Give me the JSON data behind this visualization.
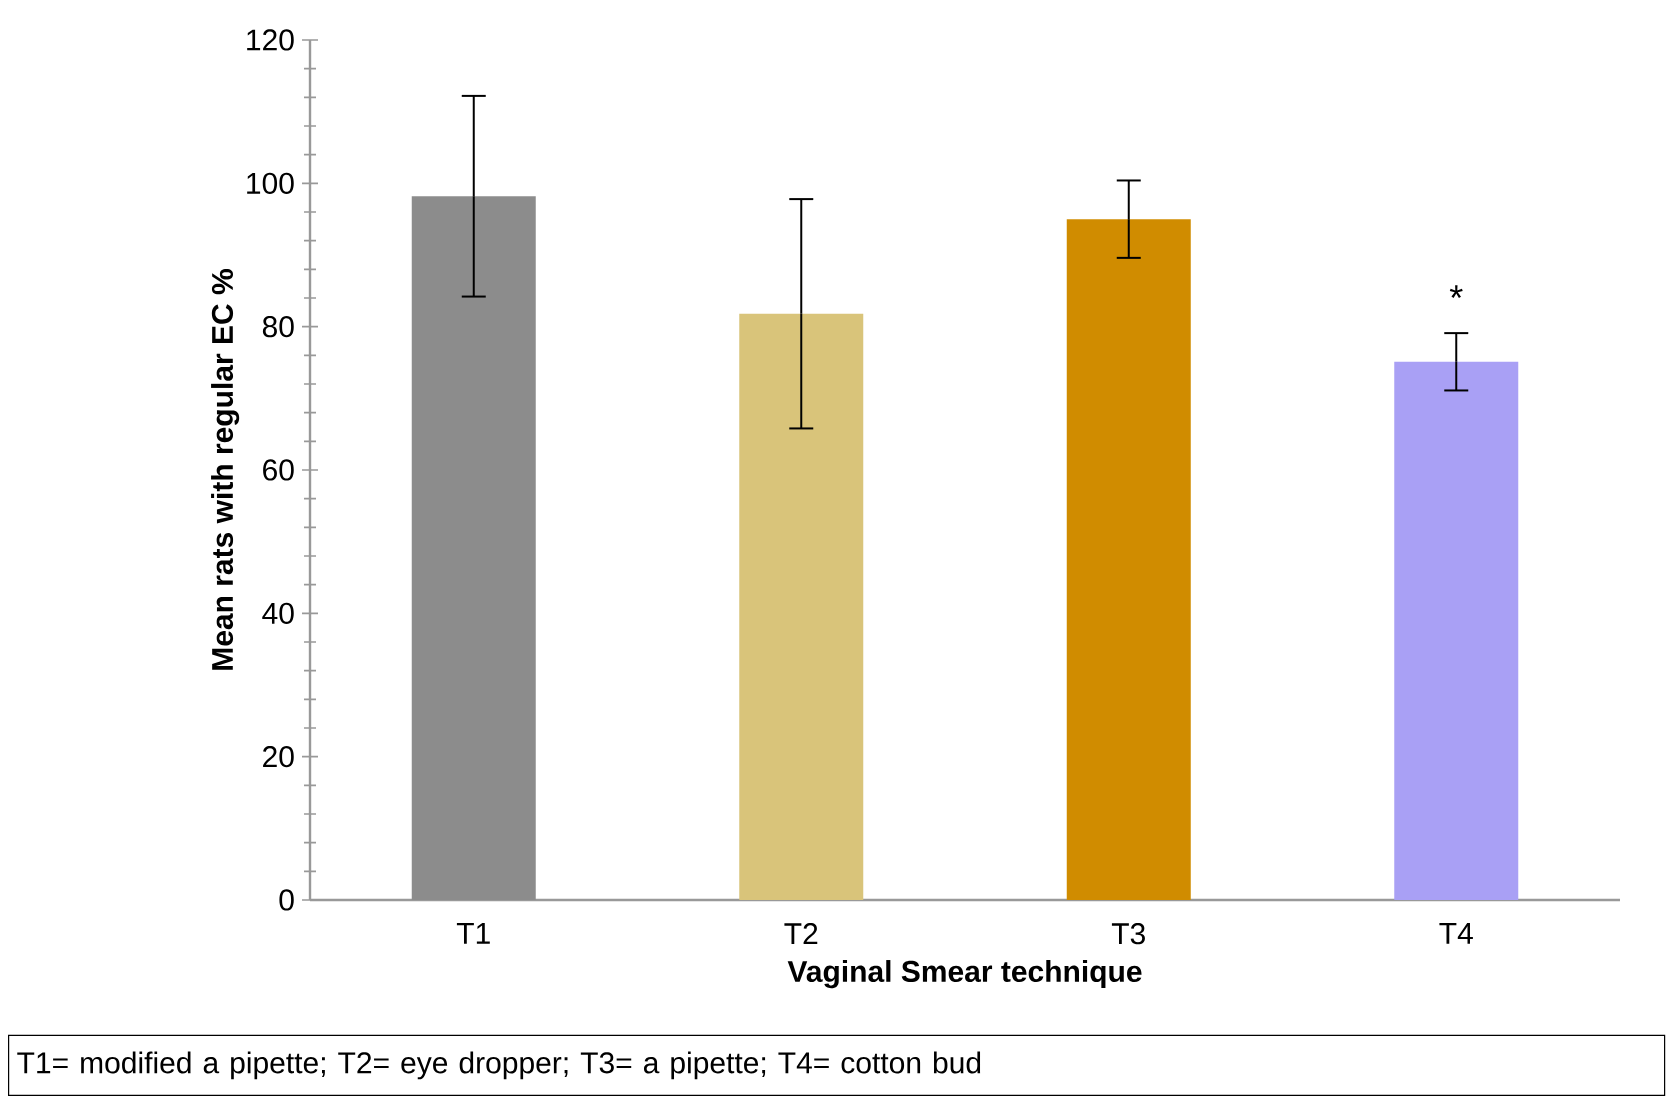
{
  "chart_data": {
    "type": "bar",
    "xlabel": "Vaginal Smear technique",
    "ylabel": "Mean rats with regular EC %",
    "categories": [
      "T1",
      "T2",
      "T3",
      "T4"
    ],
    "values": [
      98.2,
      81.8,
      95.0,
      75.1
    ],
    "errors": [
      14,
      16,
      5.4,
      4
    ],
    "colors": [
      "#8c8c8c",
      "#d9c47a",
      "#d08c00",
      "#a9a0f5"
    ],
    "ylim": [
      0,
      120
    ],
    "yticks": [
      0,
      20,
      40,
      60,
      80,
      100,
      120
    ],
    "grid": false,
    "annotations": [
      {
        "text": "*",
        "x": "T4",
        "y": 79.1
      },
      "T1= modified a pipette; T2= eye dropper; T3= a pipette; T4= cotton bud"
    ]
  }
}
